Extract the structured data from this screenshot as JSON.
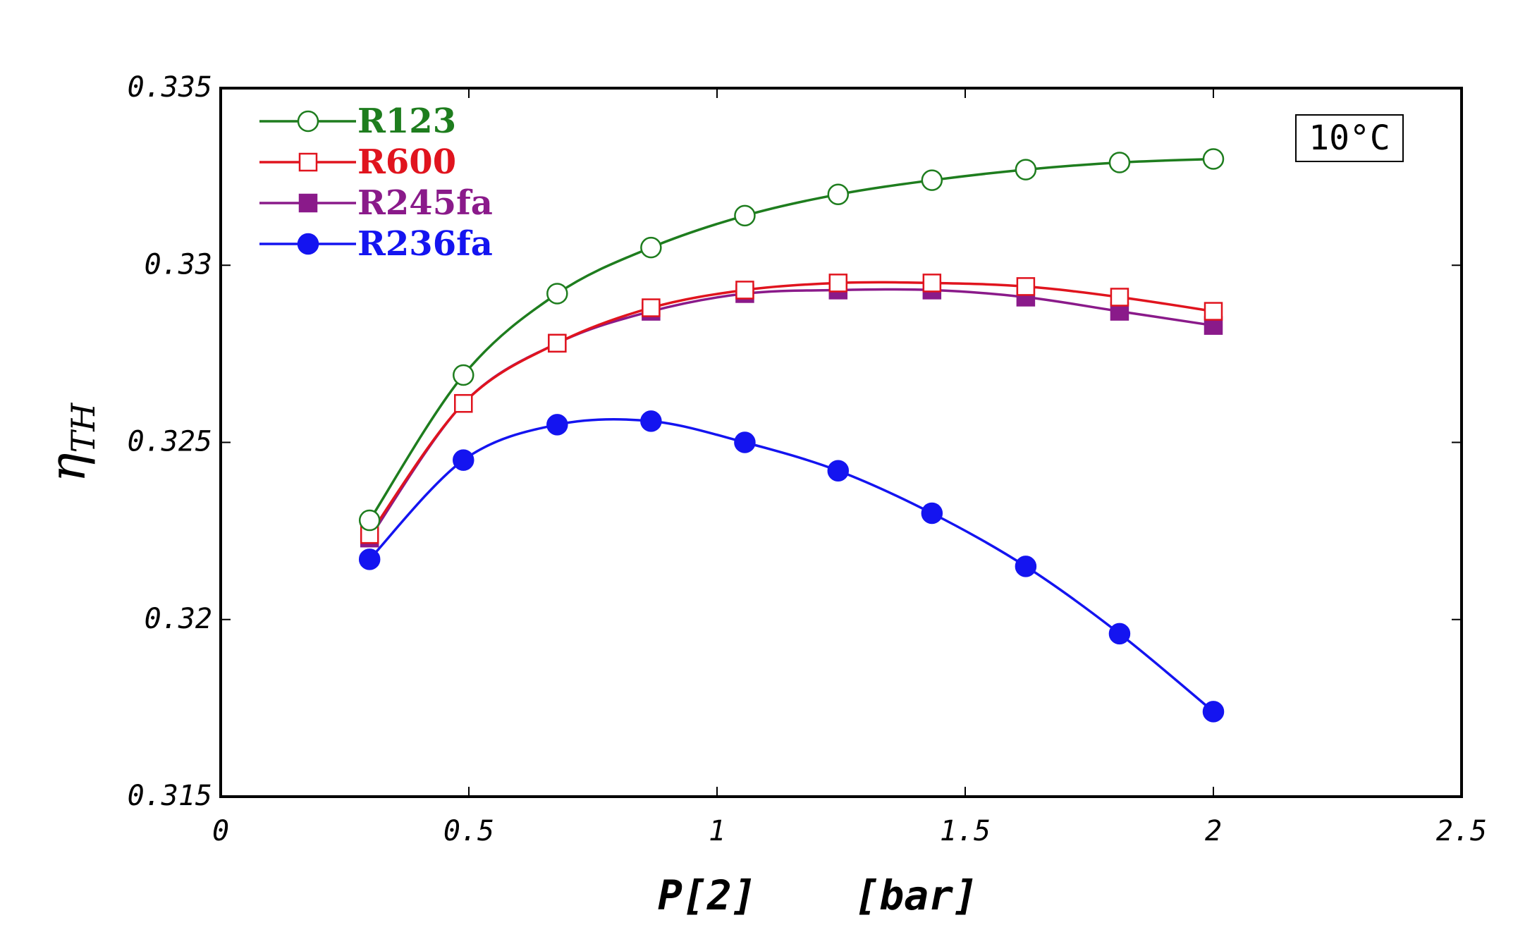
{
  "chart_data": {
    "type": "line",
    "xlabel": "P[2]    [bar]",
    "ylabel": "ηTH",
    "xlim": [
      0,
      2.5
    ],
    "ylim": [
      0.315,
      0.335
    ],
    "xticks": [
      0,
      0.5,
      1,
      1.5,
      2,
      2.5
    ],
    "yticks": [
      0.315,
      0.32,
      0.325,
      0.33,
      0.335
    ],
    "xtick_labels": [
      "0",
      "0.5",
      "1",
      "1.5",
      "2",
      "2.5"
    ],
    "ytick_labels": [
      "0.315",
      "0.32",
      "0.325",
      "0.33",
      "0.335"
    ],
    "grid": false,
    "legend_position": "top-left",
    "annotation": "10°C",
    "x": [
      0.3,
      0.489,
      0.678,
      0.867,
      1.056,
      1.244,
      1.433,
      1.622,
      1.811,
      2.0
    ],
    "series": [
      {
        "name": "R123",
        "color": "#1e7d1e",
        "marker": "open-circle",
        "values": [
          0.3228,
          0.3269,
          0.3292,
          0.3305,
          0.3314,
          0.332,
          0.3324,
          0.3327,
          0.3329,
          0.333
        ]
      },
      {
        "name": "R600",
        "color": "#e0141e",
        "marker": "open-square",
        "values": [
          0.3224,
          0.3261,
          0.3278,
          0.3288,
          0.3293,
          0.3295,
          0.3295,
          0.3294,
          0.3291,
          0.3287
        ]
      },
      {
        "name": "R245fa",
        "color": "#8a1a8a",
        "marker": "filled-square",
        "values": [
          0.3223,
          0.3261,
          0.3278,
          0.3287,
          0.3292,
          0.3293,
          0.3293,
          0.3291,
          0.3287,
          0.3283
        ]
      },
      {
        "name": "R236fa",
        "color": "#1414f0",
        "marker": "filled-circle",
        "values": [
          0.3217,
          0.3245,
          0.3255,
          0.3256,
          0.325,
          0.3242,
          0.323,
          0.3215,
          0.3196,
          0.3174
        ]
      }
    ]
  }
}
